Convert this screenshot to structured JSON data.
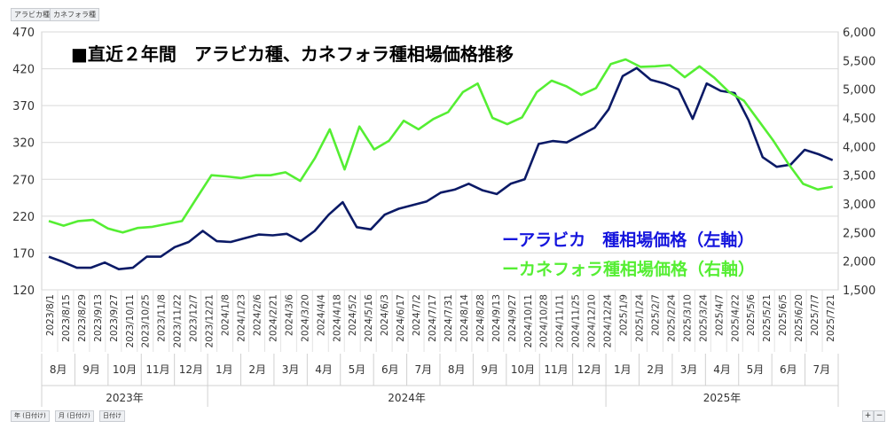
{
  "field_buttons": {
    "arabica": "アラビカ種",
    "canephora": "カネフォラ種"
  },
  "filter_buttons": [
    "年 (日付け)",
    "月 (日付け)",
    "日付け"
  ],
  "zoom_buttons": [
    "+",
    "−"
  ],
  "chart_data": {
    "type": "line",
    "title": "■直近２年間　アラビカ種、カネフォラ種相場価格推移",
    "legend_position": "right, over plot",
    "grid": true,
    "y_left": {
      "ylim": [
        120,
        470
      ],
      "ticks": [
        "120",
        "170",
        "220",
        "270",
        "320",
        "370",
        "420",
        "470"
      ]
    },
    "y_right": {
      "ylim": [
        1500,
        6000
      ],
      "ticks": [
        "1,500",
        "2,000",
        "2,500",
        "3,000",
        "3,500",
        "4,000",
        "4,500",
        "5,000",
        "5,500",
        "6,000"
      ]
    },
    "x_tick_labels": [
      "2023/8/1",
      "2023/8/15",
      "2023/8/29",
      "2023/9/13",
      "2023/9/27",
      "2023/10/11",
      "2023/10/25",
      "2023/11/8",
      "2023/11/22",
      "2023/12/7",
      "2023/12/21",
      "2024/1/8",
      "2024/1/23",
      "2024/2/6",
      "2024/2/21",
      "2024/3/6",
      "2024/3/20",
      "2024/4/4",
      "2024/4/18",
      "2024/5/2",
      "2024/5/16",
      "2024/6/3",
      "2024/6/17",
      "2024/7/2",
      "2024/7/17",
      "2024/7/31",
      "2024/8/14",
      "2024/8/28",
      "2024/9/13",
      "2024/9/27",
      "2024/10/11",
      "2024/10/28",
      "2024/11/11",
      "2024/11/25",
      "2024/12/10",
      "2024/12/24",
      "2025/1/9",
      "2025/1/24",
      "2025/2/7",
      "2025/2/24",
      "2025/3/10",
      "2025/3/24",
      "2025/4/7",
      "2025/4/22",
      "2025/5/6",
      "2025/5/21",
      "2025/6/5",
      "2025/6/20",
      "2025/7/7",
      "2025/7/21"
    ],
    "months": [
      "8月",
      "9月",
      "10月",
      "11月",
      "12月",
      "1月",
      "2月",
      "3月",
      "4月",
      "5月",
      "6月",
      "7月",
      "8月",
      "9月",
      "10月",
      "11月",
      "12月",
      "1月",
      "2月",
      "3月",
      "4月",
      "5月",
      "6月",
      "7月"
    ],
    "years": [
      "2023年",
      "2024年",
      "2025年"
    ],
    "series": [
      {
        "name": "ーアラビカ　種相場価格（左軸）",
        "axis": "left",
        "color": "#0b1a66",
        "values": [
          165,
          158,
          150,
          150,
          157,
          148,
          150,
          165,
          165,
          178,
          185,
          200,
          186,
          185,
          190,
          195,
          194,
          196,
          186,
          200,
          222,
          239,
          205,
          202,
          222,
          230,
          235,
          240,
          252,
          256,
          264,
          255,
          250,
          264,
          270,
          318,
          322,
          320,
          330,
          340,
          365,
          410,
          421,
          405,
          400,
          392,
          352,
          400,
          390,
          387,
          350,
          300,
          287,
          290,
          310,
          304,
          296
        ]
      },
      {
        "name": "ーカネフォラ種相場価格（右軸）",
        "axis": "right",
        "color": "#55ee33",
        "values": [
          2700,
          2620,
          2700,
          2720,
          2570,
          2500,
          2580,
          2600,
          2650,
          2700,
          3100,
          3500,
          3480,
          3450,
          3500,
          3500,
          3550,
          3400,
          3800,
          4300,
          3600,
          4350,
          3950,
          4100,
          4450,
          4300,
          4480,
          4600,
          4950,
          5100,
          4500,
          4390,
          4510,
          4950,
          5150,
          5050,
          4900,
          5020,
          5440,
          5520,
          5390,
          5400,
          5420,
          5210,
          5400,
          5200,
          4950,
          4800,
          4450,
          4100,
          3700,
          3350,
          3250,
          3300
        ]
      }
    ]
  }
}
